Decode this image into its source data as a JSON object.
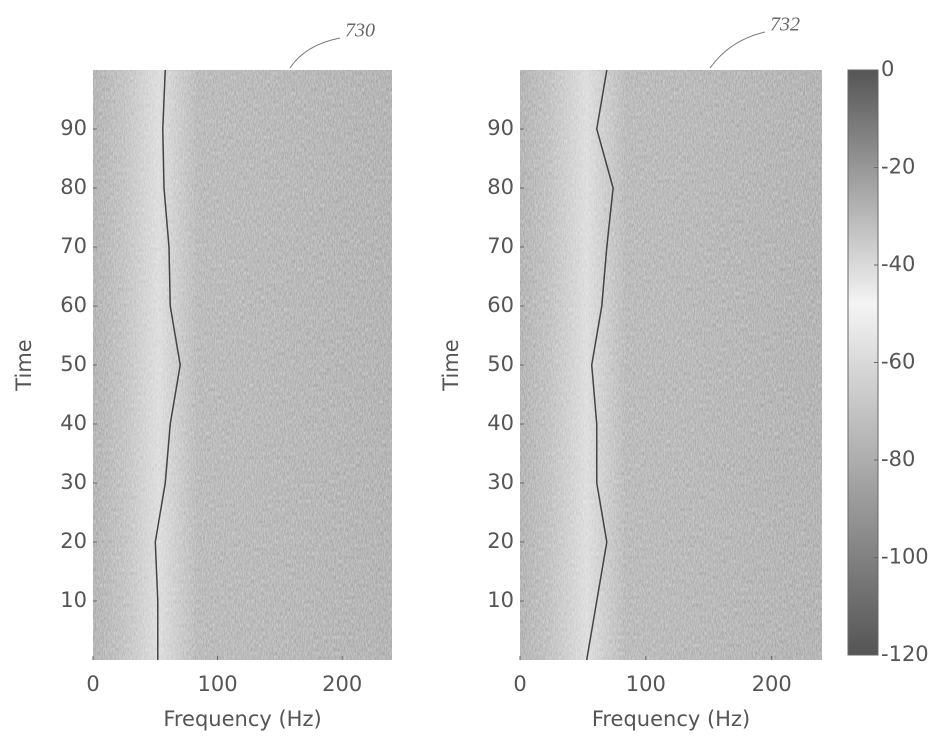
{
  "chart_data": [
    {
      "type": "spectrogram",
      "xlabel": "Frequency (Hz)",
      "ylabel": "Time",
      "annotation": "730",
      "xlim": [
        0,
        240
      ],
      "ylim": [
        0,
        100
      ],
      "xticks": [
        0,
        100,
        200
      ],
      "yticks": [
        10,
        20,
        30,
        40,
        50,
        60,
        70,
        80,
        90
      ],
      "series": [
        {
          "color": "#444444",
          "x": [
            52,
            52,
            50,
            58,
            62,
            70,
            62,
            61,
            57,
            56,
            58
          ],
          "y": [
            0,
            10,
            20,
            30,
            40,
            50,
            60,
            70,
            80,
            90,
            100
          ]
        }
      ]
    },
    {
      "type": "spectrogram",
      "xlabel": "Frequency (Hz)",
      "ylabel": "Time",
      "annotation": "732",
      "xlim": [
        0,
        240
      ],
      "ylim": [
        0,
        100
      ],
      "xticks": [
        0,
        100,
        200
      ],
      "yticks": [
        10,
        20,
        30,
        40,
        50,
        60,
        70,
        80,
        90
      ],
      "series": [
        {
          "color": "#444444",
          "x": [
            53,
            61,
            69,
            61,
            61,
            57,
            65,
            69,
            74,
            61,
            69
          ],
          "y": [
            0,
            10,
            20,
            30,
            40,
            50,
            60,
            70,
            80,
            90,
            100
          ]
        }
      ]
    },
    {
      "type": "colorbar",
      "ylim": [
        -120,
        0
      ],
      "yticks": [
        0,
        -20,
        -40,
        -60,
        -80,
        -100,
        -120
      ]
    }
  ]
}
